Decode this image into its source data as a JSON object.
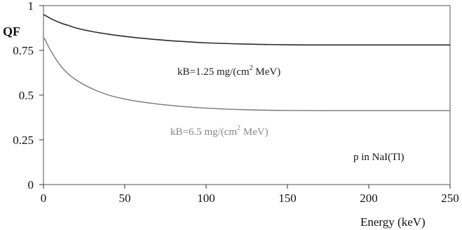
{
  "chart_data": {
    "type": "line",
    "title": "",
    "xlabel": "Energy (keV)",
    "ylabel": "QF",
    "xlim": [
      0,
      250
    ],
    "ylim": [
      0,
      1
    ],
    "x_ticks": [
      {
        "value": 0,
        "label": "0"
      },
      {
        "value": 50,
        "label": "50"
      },
      {
        "value": 100,
        "label": "100"
      },
      {
        "value": 150,
        "label": "150"
      },
      {
        "value": 200,
        "label": "200"
      },
      {
        "value": 250,
        "label": "250"
      }
    ],
    "y_ticks": [
      {
        "value": 0,
        "label": "0"
      },
      {
        "value": 0.25,
        "label": "0.25"
      },
      {
        "value": 0.5,
        "label": "0.5"
      },
      {
        "value": 0.75,
        "label": "0.75"
      },
      {
        "value": 1,
        "label": "1"
      }
    ],
    "grid": false,
    "legend": "none",
    "series": [
      {
        "color": "#2a2a2a",
        "x": [
          0,
          2,
          5,
          10,
          15,
          20,
          30,
          40,
          50,
          60,
          75,
          100,
          125,
          150,
          175,
          200,
          225,
          250
        ],
        "y": [
          0.95,
          0.94,
          0.925,
          0.905,
          0.89,
          0.875,
          0.855,
          0.84,
          0.828,
          0.818,
          0.806,
          0.792,
          0.785,
          0.781,
          0.78,
          0.78,
          0.78,
          0.78
        ]
      },
      {
        "color": "#777777",
        "x": [
          0,
          1,
          2,
          5,
          10,
          15,
          20,
          30,
          40,
          50,
          60,
          75,
          100,
          125,
          150,
          175,
          200,
          225,
          250
        ],
        "y": [
          0.82,
          0.81,
          0.79,
          0.74,
          0.67,
          0.62,
          0.585,
          0.535,
          0.5,
          0.478,
          0.462,
          0.445,
          0.427,
          0.418,
          0.414,
          0.413,
          0.413,
          0.413,
          0.413
        ]
      }
    ],
    "annotations": [
      {
        "text": "kB=1.25 mg/(cm",
        "sup": "2",
        "rest": " MeV)",
        "color": "#222222"
      },
      {
        "text": "kB=6.5 mg/(cm",
        "sup": "2",
        "rest": " MeV)",
        "color": "#888888"
      },
      {
        "text": "p in NaI(Tl)",
        "color": "#111111"
      }
    ]
  }
}
